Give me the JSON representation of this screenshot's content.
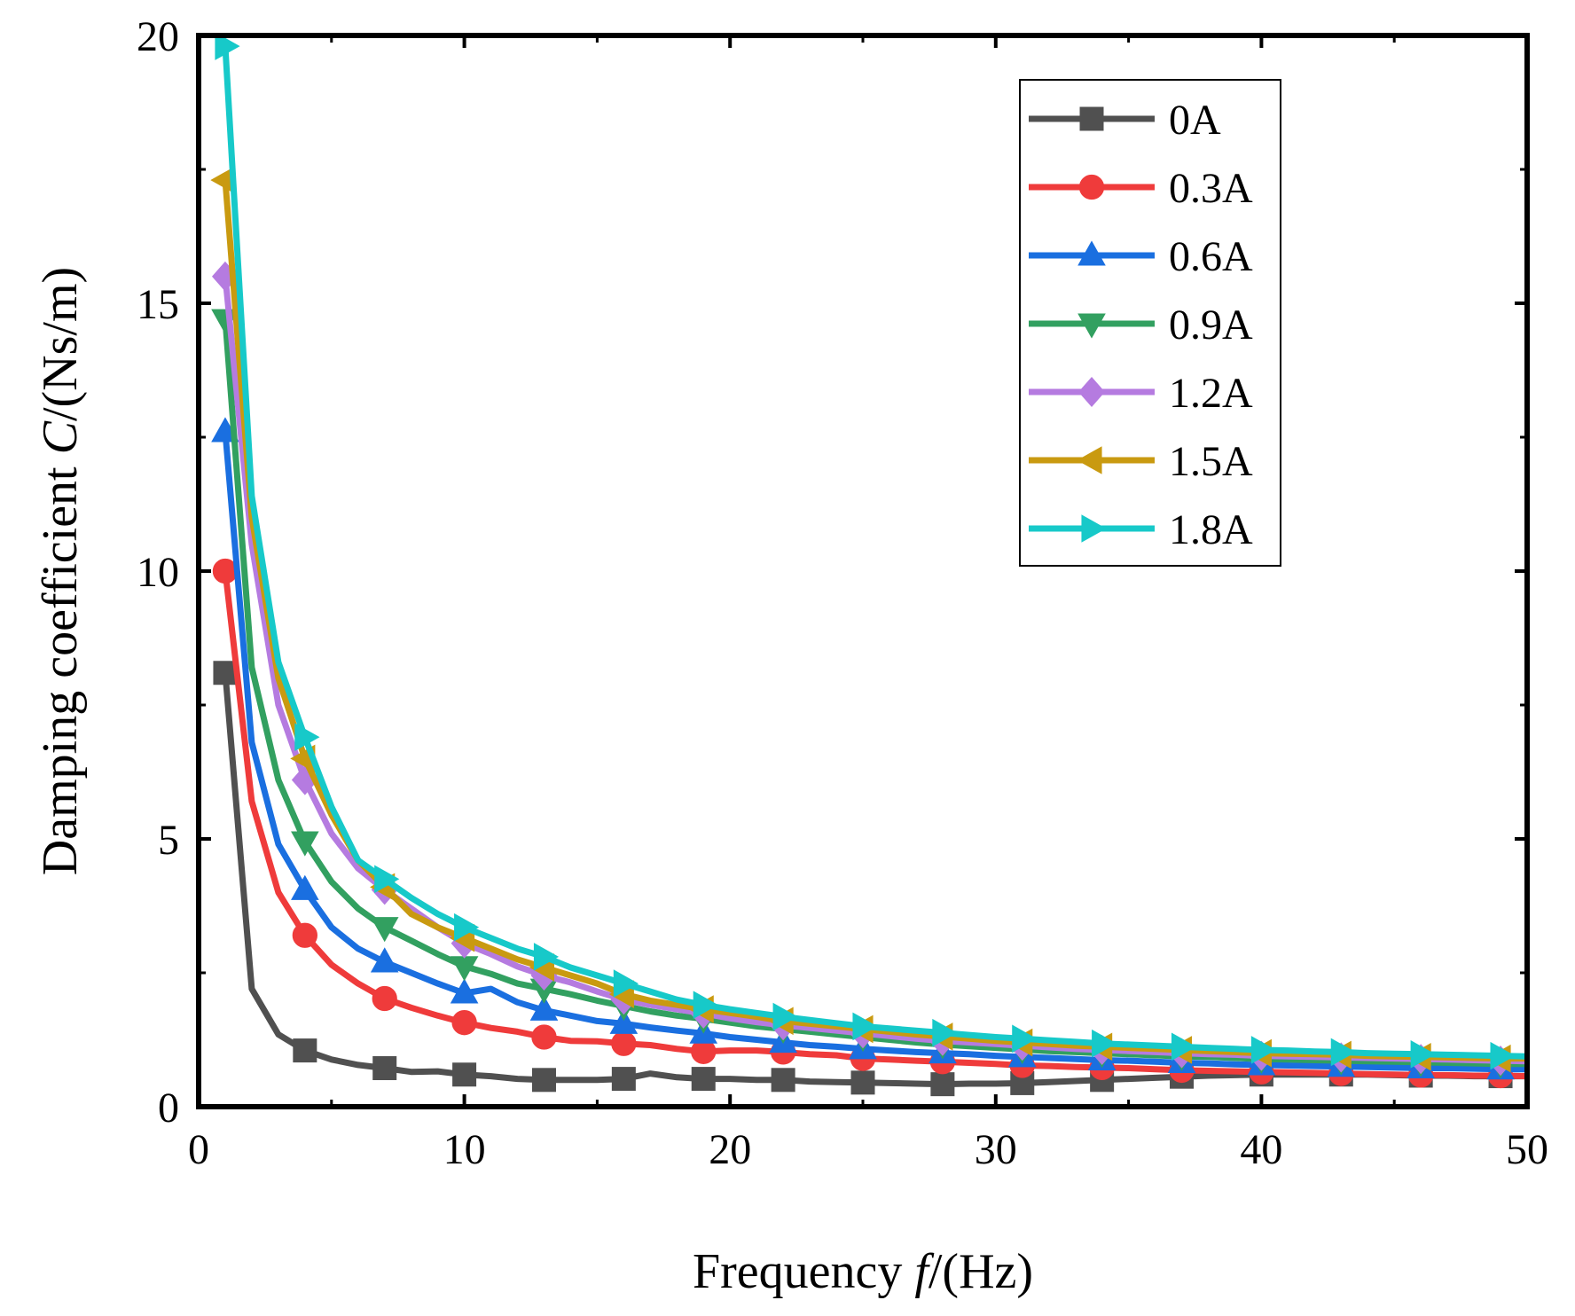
{
  "chart_data": {
    "type": "line",
    "title": "",
    "xlabel": {
      "prefix": "Frequency ",
      "italic": "f",
      "suffix": "/(Hz)"
    },
    "ylabel": {
      "prefix": "Damping coefficient ",
      "italic": "C",
      "suffix": "/(Ns/m)"
    },
    "xlim": [
      0,
      50
    ],
    "ylim": [
      0,
      20
    ],
    "xticks": [
      0,
      10,
      20,
      30,
      40,
      50
    ],
    "yticks": [
      0,
      5,
      10,
      15,
      20
    ],
    "xtick_labels": [
      "0",
      "10",
      "20",
      "30",
      "40",
      "50"
    ],
    "ytick_labels": [
      "0",
      "5",
      "10",
      "15",
      "20"
    ],
    "legend_position": "top-right",
    "grid": false,
    "x": [
      1,
      2,
      3,
      4,
      5,
      6,
      7,
      8,
      9,
      10,
      11,
      12,
      13,
      14,
      15,
      16,
      17,
      18,
      19,
      20,
      21,
      22,
      23,
      24,
      25,
      26,
      27,
      28,
      29,
      30,
      31,
      32,
      33,
      34,
      35,
      36,
      37,
      38,
      39,
      40,
      41,
      42,
      43,
      44,
      45,
      46,
      47,
      48,
      49,
      50
    ],
    "series": [
      {
        "name": "0A",
        "color": "#505050",
        "marker": "square",
        "values": [
          8.1,
          2.2,
          1.35,
          1.05,
          0.88,
          0.78,
          0.72,
          0.65,
          0.66,
          0.6,
          0.57,
          0.52,
          0.5,
          0.5,
          0.5,
          0.52,
          0.62,
          0.55,
          0.52,
          0.52,
          0.5,
          0.5,
          0.47,
          0.46,
          0.45,
          0.44,
          0.43,
          0.42,
          0.43,
          0.43,
          0.44,
          0.46,
          0.48,
          0.5,
          0.52,
          0.54,
          0.56,
          0.58,
          0.59,
          0.6,
          0.6,
          0.6,
          0.6,
          0.6,
          0.59,
          0.58,
          0.58,
          0.57,
          0.57,
          0.57
        ]
      },
      {
        "name": "0.3A",
        "color": "#ef3b3b",
        "marker": "circle",
        "values": [
          10.0,
          5.7,
          4.0,
          3.2,
          2.65,
          2.3,
          2.02,
          1.85,
          1.7,
          1.57,
          1.47,
          1.4,
          1.3,
          1.23,
          1.22,
          1.18,
          1.15,
          1.08,
          1.03,
          1.05,
          1.05,
          1.02,
          0.98,
          0.96,
          0.9,
          0.88,
          0.86,
          0.84,
          0.82,
          0.8,
          0.77,
          0.76,
          0.74,
          0.73,
          0.72,
          0.7,
          0.68,
          0.67,
          0.66,
          0.65,
          0.64,
          0.63,
          0.62,
          0.61,
          0.6,
          0.59,
          0.59,
          0.58,
          0.58,
          0.57
        ]
      },
      {
        "name": "0.6A",
        "color": "#1a6fe0",
        "marker": "triangle-up",
        "values": [
          12.6,
          6.8,
          4.9,
          4.05,
          3.35,
          2.95,
          2.7,
          2.5,
          2.3,
          2.12,
          2.2,
          1.95,
          1.8,
          1.7,
          1.6,
          1.55,
          1.48,
          1.42,
          1.37,
          1.3,
          1.25,
          1.2,
          1.15,
          1.12,
          1.08,
          1.05,
          1.02,
          1.0,
          0.98,
          0.95,
          0.93,
          0.91,
          0.89,
          0.87,
          0.86,
          0.84,
          0.82,
          0.81,
          0.79,
          0.78,
          0.77,
          0.76,
          0.75,
          0.74,
          0.73,
          0.72,
          0.72,
          0.71,
          0.7,
          0.7
        ]
      },
      {
        "name": "0.9A",
        "color": "#32a060",
        "marker": "triangle-down",
        "values": [
          14.7,
          8.2,
          6.1,
          4.95,
          4.2,
          3.7,
          3.35,
          3.1,
          2.85,
          2.62,
          2.48,
          2.3,
          2.2,
          2.1,
          1.98,
          1.88,
          1.78,
          1.7,
          1.64,
          1.57,
          1.5,
          1.45,
          1.4,
          1.35,
          1.3,
          1.25,
          1.2,
          1.16,
          1.13,
          1.1,
          1.07,
          1.04,
          1.02,
          1.0,
          0.98,
          0.96,
          0.94,
          0.93,
          0.91,
          0.89,
          0.88,
          0.87,
          0.86,
          0.85,
          0.84,
          0.83,
          0.82,
          0.81,
          0.8,
          0.8
        ]
      },
      {
        "name": "1.2A",
        "color": "#b57be0",
        "marker": "diamond",
        "values": [
          15.5,
          10.5,
          7.5,
          6.1,
          5.1,
          4.45,
          4.05,
          3.7,
          3.35,
          3.05,
          2.85,
          2.62,
          2.45,
          2.32,
          2.15,
          2.0,
          1.9,
          1.82,
          1.74,
          1.65,
          1.58,
          1.52,
          1.47,
          1.42,
          1.37,
          1.32,
          1.27,
          1.23,
          1.2,
          1.17,
          1.14,
          1.11,
          1.08,
          1.06,
          1.04,
          1.02,
          1.0,
          0.98,
          0.97,
          0.95,
          0.94,
          0.93,
          0.92,
          0.91,
          0.9,
          0.89,
          0.88,
          0.87,
          0.86,
          0.85
        ]
      },
      {
        "name": "1.5A",
        "color": "#c99a10",
        "marker": "triangle-left",
        "values": [
          17.3,
          11.0,
          8.0,
          6.5,
          5.45,
          4.6,
          4.1,
          3.6,
          3.35,
          3.15,
          2.95,
          2.75,
          2.6,
          2.45,
          2.3,
          2.1,
          1.98,
          1.9,
          1.82,
          1.75,
          1.68,
          1.6,
          1.55,
          1.5,
          1.45,
          1.4,
          1.35,
          1.31,
          1.27,
          1.23,
          1.2,
          1.17,
          1.14,
          1.12,
          1.1,
          1.08,
          1.06,
          1.04,
          1.02,
          1.0,
          0.99,
          0.98,
          0.97,
          0.95,
          0.94,
          0.93,
          0.92,
          0.91,
          0.9,
          0.9
        ]
      },
      {
        "name": "1.8A",
        "color": "#17c9c9",
        "marker": "triangle-right",
        "values": [
          19.8,
          11.4,
          8.3,
          6.9,
          5.6,
          4.6,
          4.25,
          3.9,
          3.6,
          3.35,
          3.15,
          2.95,
          2.8,
          2.6,
          2.45,
          2.3,
          2.15,
          2.0,
          1.9,
          1.82,
          1.75,
          1.68,
          1.62,
          1.56,
          1.5,
          1.46,
          1.42,
          1.38,
          1.34,
          1.3,
          1.27,
          1.24,
          1.21,
          1.18,
          1.16,
          1.14,
          1.12,
          1.1,
          1.08,
          1.06,
          1.05,
          1.03,
          1.02,
          1.0,
          0.99,
          0.98,
          0.97,
          0.96,
          0.95,
          0.94
        ]
      }
    ]
  }
}
